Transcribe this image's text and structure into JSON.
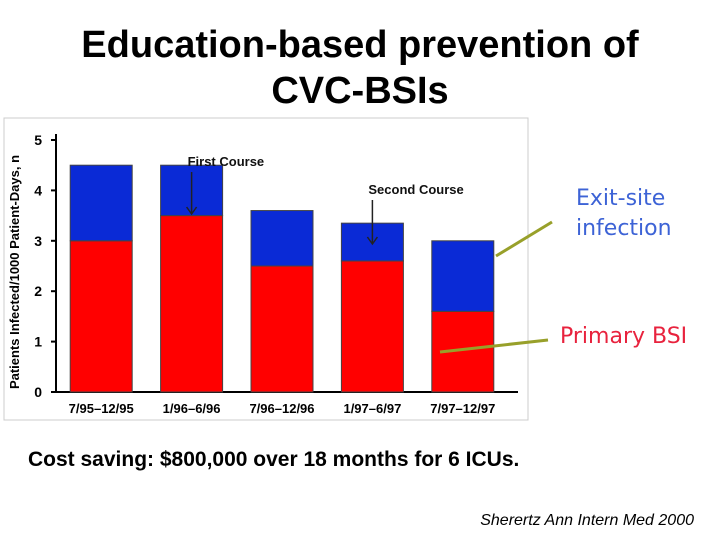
{
  "title": {
    "line1": "Education-based prevention of",
    "line2": "CVC-BSIs"
  },
  "note": "Cost saving: $800,000 over 18 months for 6 ICUs.",
  "citation": "Sherertz Ann Intern Med 2000",
  "colors": {
    "primary_bsi": "#ff0000",
    "exit_site": "#0a2ad6",
    "callout_primary": "#e8223d",
    "callout_exit": "#3d63d6",
    "leader_line": "#98a02a"
  },
  "chart_data": {
    "type": "bar",
    "stacked": true,
    "ylabel": "Patients Infected/1000 Patient-Days, n",
    "xlabel": "",
    "ylim": [
      0,
      5
    ],
    "yticks": [
      0,
      1,
      2,
      3,
      4,
      5
    ],
    "categories": [
      "7/95–12/95",
      "1/96–6/96",
      "7/96–12/96",
      "1/97–6/97",
      "7/97–12/97"
    ],
    "series": [
      {
        "name": "Primary BSI",
        "values": [
          3.0,
          3.5,
          2.5,
          2.6,
          1.6
        ]
      },
      {
        "name": "Exit-site infection",
        "values": [
          1.5,
          1.0,
          1.1,
          0.75,
          1.4
        ]
      }
    ],
    "annotations": [
      {
        "text": "First Course",
        "category_index": 1.5
      },
      {
        "text": "Second Course",
        "category_index": 3.5
      }
    ],
    "callouts": [
      {
        "line1": "Exit-site",
        "line2": "infection",
        "series": "Exit-site infection"
      },
      {
        "line1": "Primary BSI",
        "line2": "",
        "series": "Primary BSI"
      }
    ]
  }
}
